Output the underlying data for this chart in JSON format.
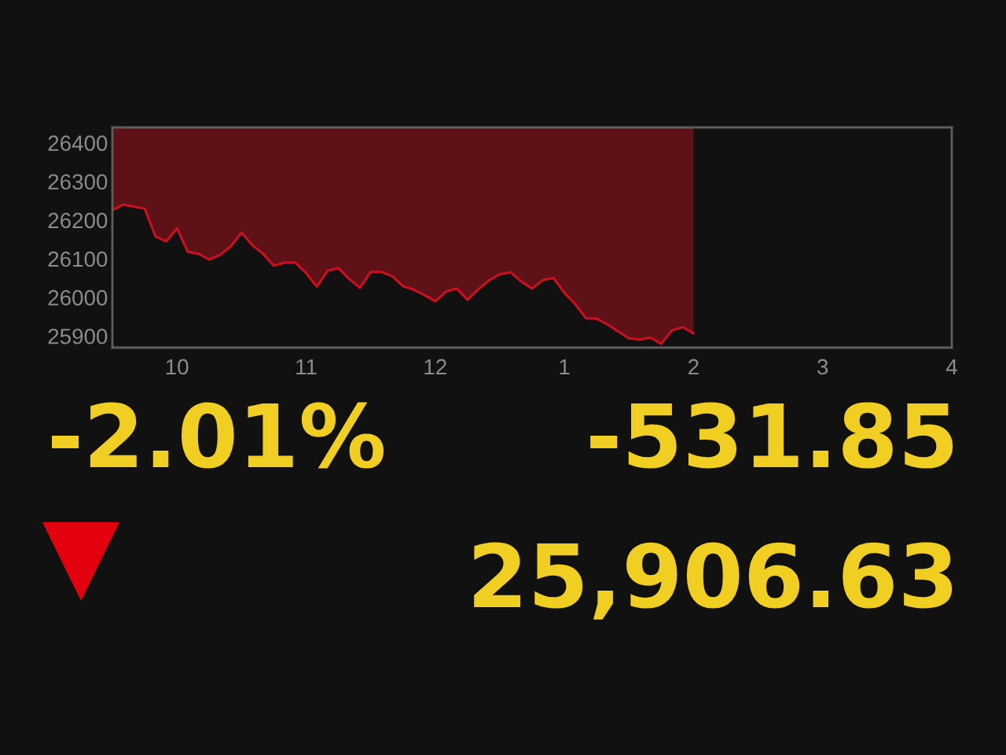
{
  "chart_data": {
    "type": "line",
    "categories": [
      null,
      null,
      null,
      null,
      null,
      null,
      "10",
      null,
      null,
      null,
      null,
      null,
      null,
      null,
      null,
      null,
      null,
      null,
      "11",
      null,
      null,
      null,
      null,
      null,
      null,
      null,
      null,
      null,
      null,
      null,
      "12",
      null,
      null,
      null,
      null,
      null,
      null,
      null,
      null,
      null,
      null,
      null,
      "1",
      null,
      null,
      null,
      null,
      null,
      null,
      null,
      null,
      null,
      null,
      null,
      "2",
      null,
      null,
      null,
      null,
      null,
      null,
      null,
      null,
      null,
      null,
      null,
      "3",
      null,
      null,
      null,
      null,
      null,
      null,
      null,
      null,
      null,
      null,
      null,
      "4"
    ],
    "series": [
      {
        "color": "#cc1020",
        "values": [
          26226,
          26240,
          26235,
          26230,
          26158,
          26145,
          26179,
          26118,
          26113,
          26098,
          26110,
          26132,
          26168,
          26135,
          26113,
          26082,
          26090,
          26090,
          26063,
          26028,
          26069,
          26076,
          26048,
          26025,
          26066,
          26066,
          26055,
          26029,
          26020,
          26006,
          25990,
          26015,
          26023,
          25994,
          26021,
          26044,
          26060,
          26065,
          26041,
          26023,
          26045,
          26050,
          26012,
          25983,
          25946,
          25945,
          25930,
          25912,
          25894,
          25891,
          25896,
          25880,
          25915,
          25923,
          25907,
          null,
          null,
          null,
          null,
          null,
          null,
          null,
          null,
          null,
          null,
          null,
          null,
          null,
          null,
          null,
          null,
          null,
          null,
          null,
          null,
          null,
          null,
          null,
          null
        ],
        "lower": [
          26226,
          26240,
          26235,
          26230,
          26158,
          26145,
          26179,
          26118,
          26113,
          26098,
          26110,
          26132,
          26168,
          26135,
          26113,
          26082,
          26090,
          26090,
          26063,
          26028,
          26069,
          26076,
          26048,
          26025,
          26066,
          26066,
          26055,
          26029,
          26020,
          26006,
          25990,
          26015,
          26023,
          25994,
          26021,
          26044,
          26060,
          26065,
          26041,
          26023,
          26045,
          26050,
          26012,
          25983,
          25946,
          25945,
          25930,
          25912,
          25894,
          25891,
          25896,
          25880,
          25915,
          25923,
          25907,
          null,
          null,
          null,
          null,
          null,
          null,
          null,
          null,
          null,
          null,
          null,
          null,
          null,
          null,
          null,
          null,
          null,
          null,
          null,
          null,
          null,
          null,
          null,
          null
        ],
        "upper": [
          26440,
          26440,
          26440,
          26440,
          26440,
          26440,
          26440,
          26440,
          26440,
          26440,
          26440,
          26440,
          26440,
          26440,
          26440,
          26440,
          26440,
          26440,
          26440,
          26440,
          26440,
          26440,
          26440,
          26440,
          26440,
          26440,
          26440,
          26440,
          26440,
          26440,
          26440,
          26440,
          26440,
          26440,
          26440,
          26440,
          26440,
          26440,
          26440,
          26440,
          26440,
          26440,
          26440,
          26440,
          26440,
          26440,
          26440,
          26440,
          26440,
          26440,
          26440,
          26440,
          26440,
          26440,
          26440,
          null,
          null,
          null,
          null,
          null,
          null,
          null,
          null,
          null,
          null,
          null,
          null,
          null,
          null,
          null,
          null,
          null,
          null,
          null,
          null,
          null,
          null,
          null,
          null
        ]
      }
    ],
    "ylim": [
      25870,
      26440
    ],
    "yticks": [
      25900,
      26000,
      26100,
      26200,
      26300,
      26400
    ],
    "annotations": [
      "-2.01%",
      "-531.85",
      "25,906.63"
    ]
  }
}
